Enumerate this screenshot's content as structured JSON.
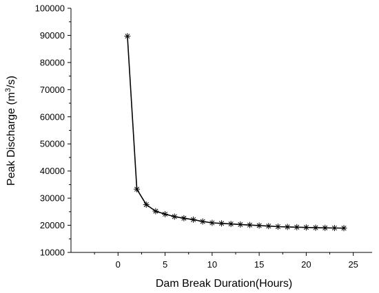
{
  "chart_data": {
    "type": "line",
    "title": "",
    "xlabel": "Dam Break Duration(Hours)",
    "ylabel_main": "Peak Discharge (m",
    "ylabel_sup": "3",
    "ylabel_end": "/s)",
    "xlim": [
      -5,
      27
    ],
    "ylim": [
      10000,
      100000
    ],
    "x_ticks": [
      0,
      5,
      10,
      15,
      20,
      25
    ],
    "x_tick_labels": [
      "0",
      "5",
      "10",
      "15",
      "20",
      "25"
    ],
    "y_ticks": [
      10000,
      20000,
      30000,
      40000,
      50000,
      60000,
      70000,
      80000,
      90000,
      100000
    ],
    "y_tick_labels": [
      "10000",
      "20000",
      "30000",
      "40000",
      "50000",
      "60000",
      "70000",
      "80000",
      "90000",
      "100000"
    ],
    "grid": false,
    "marker": "asterisk",
    "series": [
      {
        "x": [
          1,
          2,
          3,
          4,
          5,
          6,
          7,
          8,
          9,
          10,
          11,
          12,
          13,
          14,
          15,
          16,
          17,
          18,
          19,
          20,
          21,
          22,
          23,
          24
        ],
        "values": [
          89700,
          33300,
          27600,
          25200,
          24100,
          23200,
          22600,
          22100,
          21400,
          20900,
          20700,
          20500,
          20300,
          20100,
          19900,
          19700,
          19500,
          19400,
          19300,
          19200,
          19100,
          19050,
          19000,
          18950
        ]
      }
    ]
  }
}
